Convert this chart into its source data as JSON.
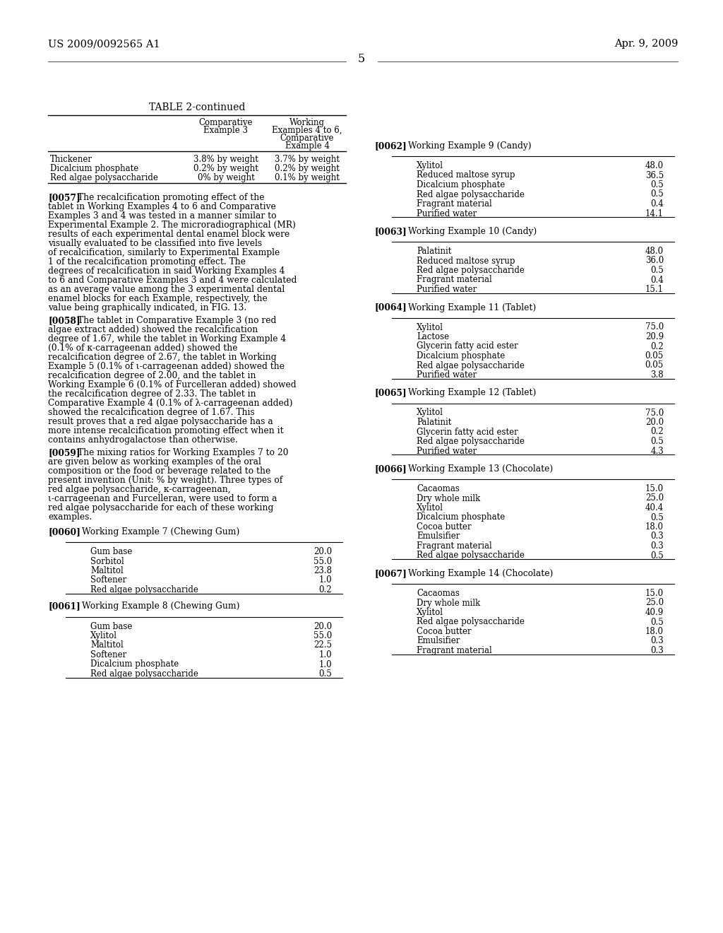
{
  "header_left": "US 2009/0092565 A1",
  "header_right": "Apr. 9, 2009",
  "page_number": "5",
  "bg_color": "#ffffff",
  "table_title": "TABLE 2-continued",
  "table_col2_header": [
    "Comparative",
    "Example 3"
  ],
  "table_col3_header": [
    "Working",
    "Examples 4 to 6,",
    "Comparative",
    "Example 4"
  ],
  "table_rows": [
    [
      "Thickener",
      "3.8% by weight",
      "3.7% by weight"
    ],
    [
      "Dicalcium phosphate",
      "0.2% by weight",
      "0.2% by weight"
    ],
    [
      "Red algae polysaccharide",
      "0% by weight",
      "0.1% by weight"
    ]
  ],
  "body57": "The recalcification promoting effect of the tablet in Working Examples 4 to 6 and Comparative Examples 3 and 4 was tested in a manner similar to Experimental Example 2. The microradiographical (MR) results of each experimental dental enamel block were visually evaluated to be classified into five levels of recalcification, similarly to Experimental Example 1 of the recalcification promoting effect. The degrees of recalcification in said Working Examples 4 to 6 and Comparative Examples 3 and 4 were calculated as an average value among the 3 experimental dental enamel blocks for each Example, respectively, the value being graphically indicated, in FIG. 13.",
  "body58": "The tablet in Comparative Example 3 (no red algae extract added) showed the recalcification degree of 1.67, while the tablet in Working Example 4 (0.1% of κ-carrageenan added) showed the recalcification degree of 2.67, the tablet in Working Example 5 (0.1% of ι-carrageenan added) showed the recalcification degree of 2.00, and the tablet in Working Example 6 (0.1% of Furcelleran added) showed the recalcification degree of 2.33. The tablet in Comparative Example 4 (0.1% of λ-carrageenan added) showed the recalcification degree of 1.67. This result proves that a red algae polysaccharide has a more intense recalcification promoting effect when it contains anhydrogalactose than otherwise.",
  "body59": "The mixing ratios for Working Examples 7 to 20 are given below as working examples of the oral composition or the food or beverage related to the present invention (Unit: % by weight). Three types of red algae polysaccharide, κ-carrageenan, ι-carrageenan and Furcelleran, were used to form a red algae polysaccharide for each of these working examples.",
  "example7_rows": [
    [
      "Gum base",
      "20.0"
    ],
    [
      "Sorbitol",
      "55.0"
    ],
    [
      "Maltitol",
      "23.8"
    ],
    [
      "Softener",
      "1.0"
    ],
    [
      "Red algae polysaccharide",
      "0.2"
    ]
  ],
  "example8_rows": [
    [
      "Gum base",
      "20.0"
    ],
    [
      "Xylitol",
      "55.0"
    ],
    [
      "Maltitol",
      "22.5"
    ],
    [
      "Softener",
      "1.0"
    ],
    [
      "Dicalcium phosphate",
      "1.0"
    ],
    [
      "Red algae polysaccharide",
      "0.5"
    ]
  ],
  "example9_rows": [
    [
      "Xylitol",
      "48.0"
    ],
    [
      "Reduced maltose syrup",
      "36.5"
    ],
    [
      "Dicalcium phosphate",
      "0.5"
    ],
    [
      "Red algae polysaccharide",
      "0.5"
    ],
    [
      "Fragrant material",
      "0.4"
    ],
    [
      "Purified water",
      "14.1"
    ]
  ],
  "example10_rows": [
    [
      "Palatinit",
      "48.0"
    ],
    [
      "Reduced maltose syrup",
      "36.0"
    ],
    [
      "Red algae polysaccharide",
      "0.5"
    ],
    [
      "Fragrant material",
      "0.4"
    ],
    [
      "Purified water",
      "15.1"
    ]
  ],
  "example11_rows": [
    [
      "Xylitol",
      "75.0"
    ],
    [
      "Lactose",
      "20.9"
    ],
    [
      "Glycerin fatty acid ester",
      "0.2"
    ],
    [
      "Dicalcium phosphate",
      "0.05"
    ],
    [
      "Red algae polysaccharide",
      "0.05"
    ],
    [
      "Purified water",
      "3.8"
    ]
  ],
  "example12_rows": [
    [
      "Xylitol",
      "75.0"
    ],
    [
      "Palatinit",
      "20.0"
    ],
    [
      "Glycerin fatty acid ester",
      "0.2"
    ],
    [
      "Red algae polysaccharide",
      "0.5"
    ],
    [
      "Purified water",
      "4.3"
    ]
  ],
  "example13_rows": [
    [
      "Cacaomas",
      "15.0"
    ],
    [
      "Dry whole milk",
      "25.0"
    ],
    [
      "Xylitol",
      "40.4"
    ],
    [
      "Dicalcium phosphate",
      "0.5"
    ],
    [
      "Cocoa butter",
      "18.0"
    ],
    [
      "Emulsifier",
      "0.3"
    ],
    [
      "Fragrant material",
      "0.3"
    ],
    [
      "Red algae polysaccharide",
      "0.5"
    ]
  ],
  "example14_rows": [
    [
      "Cacaomas",
      "15.0"
    ],
    [
      "Dry whole milk",
      "25.0"
    ],
    [
      "Xylitol",
      "40.9"
    ],
    [
      "Red algae polysaccharide",
      "0.5"
    ],
    [
      "Cocoa butter",
      "18.0"
    ],
    [
      "Emulsifier",
      "0.3"
    ],
    [
      "Fragrant material",
      "0.3"
    ]
  ]
}
